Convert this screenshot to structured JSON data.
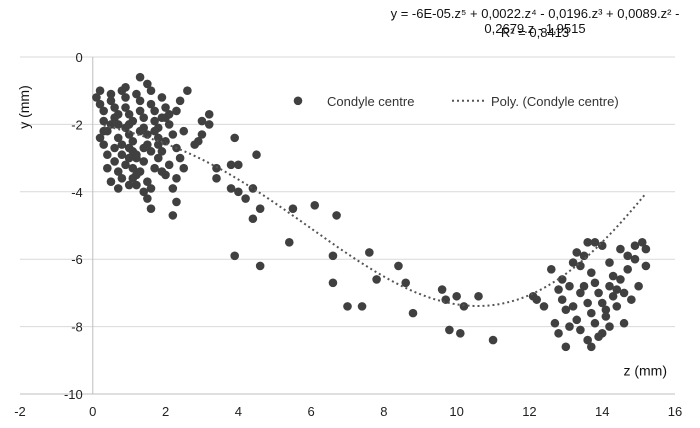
{
  "chart_data": {
    "type": "scatter",
    "xlabel": "z (mm)",
    "ylabel": "y (mm)",
    "xlim": [
      -2,
      16
    ],
    "ylim": [
      -10,
      0
    ],
    "xticks": [
      -2,
      0,
      2,
      4,
      6,
      8,
      10,
      12,
      14,
      16
    ],
    "yticks": [
      0,
      -2,
      -4,
      -6,
      -8,
      -10
    ],
    "grid": "horizontal",
    "legend_position": "top-right",
    "annotations": [
      "y = -6E-05.z⁵ + 0,0022.z⁴ - 0,0196.z³ + 0,0089.z² - 0,2679.z - 1,9515",
      "R² = 0,8413"
    ],
    "trendline": {
      "name": "Poly. (Condyle centre)",
      "type": "polynomial",
      "coefficients": [
        -6e-05,
        0.0022,
        -0.0196,
        0.0089,
        -0.2679,
        -1.9515
      ],
      "r_squared": 0.8413,
      "x_range": [
        0.3,
        15.2
      ],
      "color": "#555555"
    },
    "series": [
      {
        "name": "Condyle centre",
        "color": "#404040",
        "points": [
          [
            0.1,
            -1.2
          ],
          [
            0.2,
            -1.0
          ],
          [
            0.2,
            -1.4
          ],
          [
            0.3,
            -1.6
          ],
          [
            0.3,
            -1.9
          ],
          [
            0.4,
            -2.2
          ],
          [
            0.3,
            -2.6
          ],
          [
            0.5,
            -1.1
          ],
          [
            0.5,
            -1.3
          ],
          [
            0.6,
            -1.5
          ],
          [
            0.6,
            -1.8
          ],
          [
            0.7,
            -2.0
          ],
          [
            0.7,
            -2.4
          ],
          [
            0.8,
            -2.6
          ],
          [
            0.8,
            -1.0
          ],
          [
            0.9,
            -1.2
          ],
          [
            0.9,
            -1.5
          ],
          [
            1.0,
            -1.7
          ],
          [
            1.0,
            -2.0
          ],
          [
            1.0,
            -2.3
          ],
          [
            1.1,
            -2.5
          ],
          [
            1.1,
            -2.8
          ],
          [
            1.2,
            -3.0
          ],
          [
            1.2,
            -1.1
          ],
          [
            1.3,
            -1.3
          ],
          [
            1.3,
            -1.6
          ],
          [
            1.4,
            -1.8
          ],
          [
            1.4,
            -2.1
          ],
          [
            1.5,
            -2.3
          ],
          [
            1.5,
            -2.6
          ],
          [
            1.6,
            -1.0
          ],
          [
            1.6,
            -1.4
          ],
          [
            1.7,
            -1.6
          ],
          [
            1.7,
            -1.9
          ],
          [
            1.8,
            -2.1
          ],
          [
            1.8,
            -2.4
          ],
          [
            1.9,
            -1.2
          ],
          [
            2.0,
            -1.5
          ],
          [
            2.0,
            -1.8
          ],
          [
            2.1,
            -2.0
          ],
          [
            2.2,
            -2.3
          ],
          [
            2.3,
            -1.6
          ],
          [
            2.4,
            -1.3
          ],
          [
            2.5,
            -2.2
          ],
          [
            2.6,
            -1.0
          ],
          [
            1.3,
            -0.6
          ],
          [
            1.5,
            -0.8
          ],
          [
            0.9,
            -0.9
          ],
          [
            0.2,
            -2.4
          ],
          [
            0.4,
            -2.9
          ],
          [
            0.6,
            -3.1
          ],
          [
            0.7,
            -3.4
          ],
          [
            0.8,
            -3.6
          ],
          [
            0.9,
            -3.2
          ],
          [
            1.0,
            -3.0
          ],
          [
            1.1,
            -3.3
          ],
          [
            1.1,
            -3.6
          ],
          [
            1.2,
            -3.8
          ],
          [
            1.3,
            -3.4
          ],
          [
            1.4,
            -3.1
          ],
          [
            1.5,
            -3.7
          ],
          [
            1.6,
            -3.9
          ],
          [
            1.7,
            -3.3
          ],
          [
            1.8,
            -3.0
          ],
          [
            1.9,
            -2.8
          ],
          [
            2.0,
            -3.5
          ],
          [
            2.1,
            -3.2
          ],
          [
            2.2,
            -3.9
          ],
          [
            2.3,
            -4.3
          ],
          [
            2.3,
            -3.6
          ],
          [
            2.4,
            -3.0
          ],
          [
            1.5,
            -4.2
          ],
          [
            1.6,
            -4.5
          ],
          [
            1.4,
            -4.0
          ],
          [
            1.2,
            -3.5
          ],
          [
            1.0,
            -3.8
          ],
          [
            0.8,
            -2.9
          ],
          [
            0.6,
            -2.7
          ],
          [
            0.4,
            -3.3
          ],
          [
            0.5,
            -3.7
          ],
          [
            0.7,
            -3.9
          ],
          [
            1.9,
            -3.4
          ],
          [
            2.5,
            -3.3
          ],
          [
            2.2,
            -4.7
          ],
          [
            1.0,
            -2.7
          ],
          [
            1.2,
            -2.9
          ],
          [
            1.4,
            -2.7
          ],
          [
            1.6,
            -2.8
          ],
          [
            1.8,
            -2.6
          ],
          [
            2.0,
            -2.5
          ],
          [
            1.3,
            -2.2
          ],
          [
            1.1,
            -1.9
          ],
          [
            0.9,
            -2.1
          ],
          [
            0.7,
            -1.7
          ],
          [
            0.5,
            -2.0
          ],
          [
            0.3,
            -2.2
          ],
          [
            1.7,
            -2.2
          ],
          [
            1.9,
            -1.8
          ],
          [
            2.1,
            -1.7
          ],
          [
            2.3,
            -2.7
          ],
          [
            2.8,
            -2.6
          ],
          [
            3.0,
            -2.3
          ],
          [
            3.2,
            -2.0
          ],
          [
            3.0,
            -1.9
          ],
          [
            3.2,
            -1.7
          ],
          [
            2.9,
            -2.5
          ],
          [
            3.4,
            -3.3
          ],
          [
            3.4,
            -3.6
          ],
          [
            3.8,
            -3.9
          ],
          [
            3.8,
            -3.2
          ],
          [
            3.9,
            -2.4
          ],
          [
            4.0,
            -3.2
          ],
          [
            4.0,
            -4.0
          ],
          [
            4.2,
            -4.2
          ],
          [
            4.4,
            -3.9
          ],
          [
            4.5,
            -2.9
          ],
          [
            4.6,
            -4.5
          ],
          [
            4.4,
            -4.8
          ],
          [
            3.9,
            -5.9
          ],
          [
            4.6,
            -6.2
          ],
          [
            5.4,
            -5.5
          ],
          [
            5.5,
            -4.5
          ],
          [
            6.1,
            -4.4
          ],
          [
            6.7,
            -4.7
          ],
          [
            6.6,
            -5.9
          ],
          [
            6.6,
            -6.7
          ],
          [
            7.0,
            -7.4
          ],
          [
            7.4,
            -7.4
          ],
          [
            7.6,
            -5.8
          ],
          [
            7.8,
            -6.6
          ],
          [
            8.4,
            -6.2
          ],
          [
            8.6,
            -6.7
          ],
          [
            8.8,
            -7.6
          ],
          [
            9.6,
            -6.9
          ],
          [
            9.7,
            -7.2
          ],
          [
            9.8,
            -8.1
          ],
          [
            10.0,
            -7.1
          ],
          [
            10.1,
            -8.2
          ],
          [
            10.2,
            -7.4
          ],
          [
            10.6,
            -7.1
          ],
          [
            11.0,
            -8.4
          ],
          [
            12.1,
            -7.1
          ],
          [
            12.2,
            -7.2
          ],
          [
            12.4,
            -7.4
          ],
          [
            12.6,
            -6.3
          ],
          [
            12.8,
            -6.9
          ],
          [
            12.9,
            -7.2
          ],
          [
            12.8,
            -8.2
          ],
          [
            13.0,
            -8.6
          ],
          [
            13.1,
            -8.0
          ],
          [
            13.2,
            -7.4
          ],
          [
            13.3,
            -7.8
          ],
          [
            13.4,
            -8.1
          ],
          [
            13.4,
            -6.2
          ],
          [
            13.5,
            -6.8
          ],
          [
            13.6,
            -7.3
          ],
          [
            13.7,
            -7.6
          ],
          [
            13.8,
            -7.9
          ],
          [
            13.9,
            -8.3
          ],
          [
            13.2,
            -6.1
          ],
          [
            13.3,
            -5.8
          ],
          [
            13.5,
            -5.9
          ],
          [
            13.6,
            -5.5
          ],
          [
            13.7,
            -6.4
          ],
          [
            13.8,
            -6.7
          ],
          [
            13.9,
            -7.0
          ],
          [
            14.0,
            -5.6
          ],
          [
            14.0,
            -7.3
          ],
          [
            14.1,
            -7.7
          ],
          [
            14.2,
            -6.1
          ],
          [
            14.2,
            -8.0
          ],
          [
            14.3,
            -6.5
          ],
          [
            14.3,
            -7.1
          ],
          [
            14.4,
            -7.4
          ],
          [
            14.5,
            -5.7
          ],
          [
            14.5,
            -6.6
          ],
          [
            14.6,
            -7.9
          ],
          [
            14.6,
            -7.0
          ],
          [
            14.7,
            -5.9
          ],
          [
            14.7,
            -6.3
          ],
          [
            14.8,
            -7.2
          ],
          [
            14.9,
            -5.6
          ],
          [
            14.9,
            -6.0
          ],
          [
            15.0,
            -6.8
          ],
          [
            15.1,
            -5.5
          ],
          [
            15.2,
            -5.7
          ],
          [
            13.0,
            -7.5
          ],
          [
            12.9,
            -6.6
          ],
          [
            13.1,
            -6.8
          ],
          [
            13.6,
            -8.4
          ],
          [
            13.7,
            -8.6
          ],
          [
            14.0,
            -8.2
          ],
          [
            14.1,
            -7.5
          ],
          [
            14.4,
            -6.9
          ],
          [
            13.8,
            -5.5
          ],
          [
            12.7,
            -7.9
          ],
          [
            15.2,
            -6.2
          ],
          [
            13.4,
            -7.0
          ],
          [
            14.2,
            -6.8
          ]
        ]
      }
    ]
  }
}
